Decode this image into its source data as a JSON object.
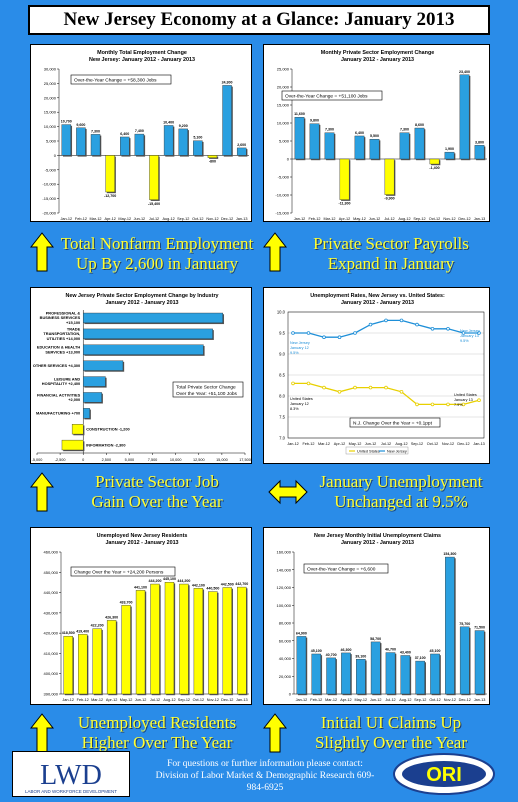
{
  "page": {
    "title": "New Jersey Economy at a Glance: January 2013",
    "footer_line1": "For questions or further information please contact:",
    "footer_line2": "Division of Labor Market & Demographic Research 609-984-6925",
    "logo_left_text": "LWD",
    "logo_left_subtext": "LABOR AND WORKFORCE DEVELOPMENT",
    "logo_right_text": "ORI"
  },
  "captions": [
    {
      "line1": "Total Nonfarm Employment",
      "line2": "Up By 2,600 in January"
    },
    {
      "line1": "Private Sector Payrolls",
      "line2": "Expand in January"
    },
    {
      "line1": "Private Sector Job",
      "line2": "Gain Over the Year"
    },
    {
      "line1": "January Unemployment",
      "line2": "Unchanged at 9.5%"
    },
    {
      "line1": "Unemployed Residents",
      "line2": "Higher Over The Year"
    },
    {
      "line1": "Initial UI Claims Up",
      "line2": "Slightly Over the Year"
    }
  ],
  "chart_data": [
    {
      "type": "bar",
      "title": "Monthly Total Employment Change",
      "subtitle": "New Jersey: January 2012 - January 2013",
      "annotation": "Over-the-Year Change = +58,300 Jobs",
      "categories": [
        "Jan-12",
        "Feb-12",
        "Mar-12",
        "Apr-12",
        "May-12",
        "Jun-12",
        "Jul-12",
        "Aug-12",
        "Sep-12",
        "Oct-12",
        "Nov-12",
        "Dec-12",
        "Jan-13"
      ],
      "values": [
        10700,
        9600,
        7300,
        -12700,
        6400,
        7400,
        -15400,
        10400,
        9200,
        5100,
        -800,
        24300,
        2600
      ],
      "labels": [
        "10,700",
        "9,600",
        "7,300",
        "-12,700",
        "6,400",
        "7,400",
        "-15,400",
        "10,400",
        "9,200",
        "5,100",
        "-800",
        "24,300",
        "2,600"
      ],
      "ylim": [
        -20000,
        30000
      ],
      "yticks": [
        -20000,
        -15000,
        -10000,
        -5000,
        0,
        5000,
        10000,
        15000,
        20000,
        25000,
        30000
      ],
      "ytick_labels": [
        "-20,000",
        "-15,000",
        "-10,000",
        "-5,000",
        "0",
        "5,000",
        "10,000",
        "15,000",
        "20,000",
        "25,000",
        "30,000"
      ],
      "colors": {
        "positive": "#2aa0e0",
        "negative": "#ffff00"
      }
    },
    {
      "type": "bar",
      "title": "Monthly Private Sector Employment Change",
      "subtitle": "January 2012 - January 2013",
      "annotation": "Over-the-Year Change = +51,100 Jobs",
      "categories": [
        "Jan-12",
        "Feb-12",
        "Mar-12",
        "Apr-12",
        "May-12",
        "Jun-12",
        "Jul-12",
        "Aug-12",
        "Sep-12",
        "Oct-12",
        "Nov-12",
        "Dec-12",
        "Jan-13"
      ],
      "values": [
        11600,
        9800,
        7300,
        -11300,
        6400,
        5500,
        -9900,
        7300,
        8600,
        -1400,
        1900,
        23400,
        3800
      ],
      "labels": [
        "11,600",
        "9,800",
        "7,300",
        "-11,300",
        "6,400",
        "5,500",
        "-9,900",
        "7,300",
        "8,600",
        "-1,400",
        "1,900",
        "23,400",
        "3,800"
      ],
      "ylim": [
        -15000,
        25000
      ],
      "yticks": [
        -15000,
        -10000,
        -5000,
        0,
        5000,
        10000,
        15000,
        20000,
        25000
      ],
      "ytick_labels": [
        "-15,000",
        "-10,000",
        "-5,000",
        "0",
        "5,000",
        "10,000",
        "15,000",
        "20,000",
        "25,000"
      ],
      "colors": {
        "positive": "#2aa0e0",
        "negative": "#ffff00"
      }
    },
    {
      "type": "bar",
      "orientation": "horizontal",
      "title": "New Jersey Private Sector Employment Change by Industry",
      "subtitle": "January 2012 - January 2013",
      "annotation_line1": "Total Private Sector Change",
      "annotation_line2": "Over the Year: +51,100 Jobs",
      "categories": [
        [
          "PROFESSIONAL &",
          "BUSINESS SERVICES",
          "+15,100"
        ],
        [
          "TRADE",
          "TRANSPORTATION,",
          "UTILITIES +14,000"
        ],
        [
          "EDUCATION & HEALTH",
          "SERVICES +13,000"
        ],
        [
          "OTHER SERVICES +4,300"
        ],
        [
          "LEISURE AND",
          "HOSPITALITY +2,400"
        ],
        [
          "FINANCIAL ACTIVITIES",
          "+2,000"
        ],
        [
          "MANUFACTURING +700"
        ],
        [
          "CONSTRUCTION -1,200"
        ],
        [
          "INFORMATION -2,300"
        ]
      ],
      "values": [
        15100,
        14000,
        13000,
        4300,
        2400,
        2000,
        700,
        -1200,
        -2300
      ],
      "xlim": [
        -5000,
        17500
      ],
      "xticks": [
        -5000,
        -2500,
        0,
        2500,
        5000,
        7500,
        10000,
        12500,
        15000,
        17500
      ],
      "xtick_labels": [
        "-5,000",
        "-2,500",
        "0",
        "2,500",
        "5,000",
        "7,500",
        "10,000",
        "12,500",
        "15,000",
        "17,500"
      ],
      "colors": {
        "positive": "#2aa0e0",
        "negative": "#ffff00"
      }
    },
    {
      "type": "line",
      "title": "Unemployment Rates, New Jersey vs. United States:",
      "subtitle": "January 2012 - January 2013",
      "categories": [
        "Jan-12",
        "Feb-12",
        "Mar-12",
        "Apr-12",
        "May-12",
        "Jun-12",
        "Jul-12",
        "Aug-12",
        "Sep-12",
        "Oct-12",
        "Nov-12",
        "Dec-12",
        "Jan-13"
      ],
      "series": [
        {
          "name": "United States",
          "values": [
            8.3,
            8.3,
            8.2,
            8.1,
            8.2,
            8.2,
            8.2,
            8.1,
            7.8,
            7.8,
            7.8,
            7.8,
            7.9
          ],
          "color": "#e8d000"
        },
        {
          "name": "New Jersey",
          "values": [
            9.5,
            9.5,
            9.4,
            9.4,
            9.5,
            9.7,
            9.8,
            9.8,
            9.7,
            9.6,
            9.6,
            9.5,
            9.5
          ],
          "color": "#1e8fd8"
        }
      ],
      "ylim": [
        7.0,
        10.0
      ],
      "yticks": [
        7.0,
        7.5,
        8.0,
        8.5,
        9.0,
        9.5,
        10.0
      ],
      "ytick_labels": [
        "7.0",
        "7.5",
        "8.0",
        "8.5",
        "9.0",
        "9.5",
        "10.0"
      ],
      "callouts": [
        {
          "lines": [
            "New Jersey",
            "January 12",
            "9.5%"
          ]
        },
        {
          "lines": [
            "New Jersey",
            "January 13",
            "9.5%"
          ]
        },
        {
          "lines": [
            "United States",
            "January 12",
            "8.3%"
          ]
        },
        {
          "lines": [
            "United States",
            "January 13",
            "7.9%"
          ]
        }
      ],
      "annotation": "N.J. Change Over the Year = +0.1ppt"
    },
    {
      "type": "bar",
      "title": "Unemployed New Jersey Residents",
      "subtitle": "January 2012 - January 2013",
      "annotation": "Change Over the Year = +24,200 Persons",
      "categories": [
        "Jan-12",
        "Feb-12",
        "Mar-12",
        "Apr-12",
        "May-12",
        "Jun-12",
        "Jul-12",
        "Aug-12",
        "Sep-12",
        "Oct-12",
        "Nov-12",
        "Dec-12",
        "Jan-13"
      ],
      "values": [
        418500,
        419400,
        422200,
        426300,
        433700,
        441100,
        444200,
        445100,
        444200,
        442100,
        440500,
        442500,
        442700
      ],
      "labels": [
        "418,500",
        "419,400",
        "422,200",
        "426,300",
        "433,700",
        "441,100",
        "444,200",
        "445,100",
        "444,200",
        "442,100",
        "440,500",
        "442,500",
        "442,700"
      ],
      "ylim": [
        390000,
        460000
      ],
      "yticks": [
        390000,
        400000,
        410000,
        420000,
        430000,
        440000,
        450000,
        460000
      ],
      "ytick_labels": [
        "390,000",
        "400,000",
        "410,000",
        "420,000",
        "430,000",
        "440,000",
        "450,000",
        "460,000"
      ],
      "colors": {
        "positive": "#ffff00"
      }
    },
    {
      "type": "bar",
      "title": "New Jersey Monthly Initial Unemployment Claims",
      "subtitle": "January 2012 - January 2013",
      "annotation": "Over-the-Year Change = +6,600",
      "categories": [
        "Jan-12",
        "Feb-12",
        "Mar-12",
        "Apr-12",
        "May-12",
        "Jun-12",
        "Jul-12",
        "Aug-12",
        "Sep-12",
        "Oct-12",
        "Nov-12",
        "Dec-12",
        "Jan-13"
      ],
      "values": [
        64900,
        45100,
        40700,
        46300,
        39100,
        58700,
        46700,
        43400,
        37100,
        45100,
        154300,
        75700,
        71500
      ],
      "labels": [
        "64,900",
        "45,100",
        "40,700",
        "46,300",
        "39,100",
        "58,700",
        "46,700",
        "43,400",
        "37,100",
        "45,100",
        "154,300",
        "75,700",
        "71,500"
      ],
      "ylim": [
        0,
        160000
      ],
      "yticks": [
        0,
        20000,
        40000,
        60000,
        80000,
        100000,
        120000,
        140000,
        160000
      ],
      "ytick_labels": [
        "0",
        "20,000",
        "40,000",
        "60,000",
        "80,000",
        "100,000",
        "120,000",
        "140,000",
        "160,000"
      ],
      "colors": {
        "positive": "#2aa0e0"
      }
    }
  ]
}
